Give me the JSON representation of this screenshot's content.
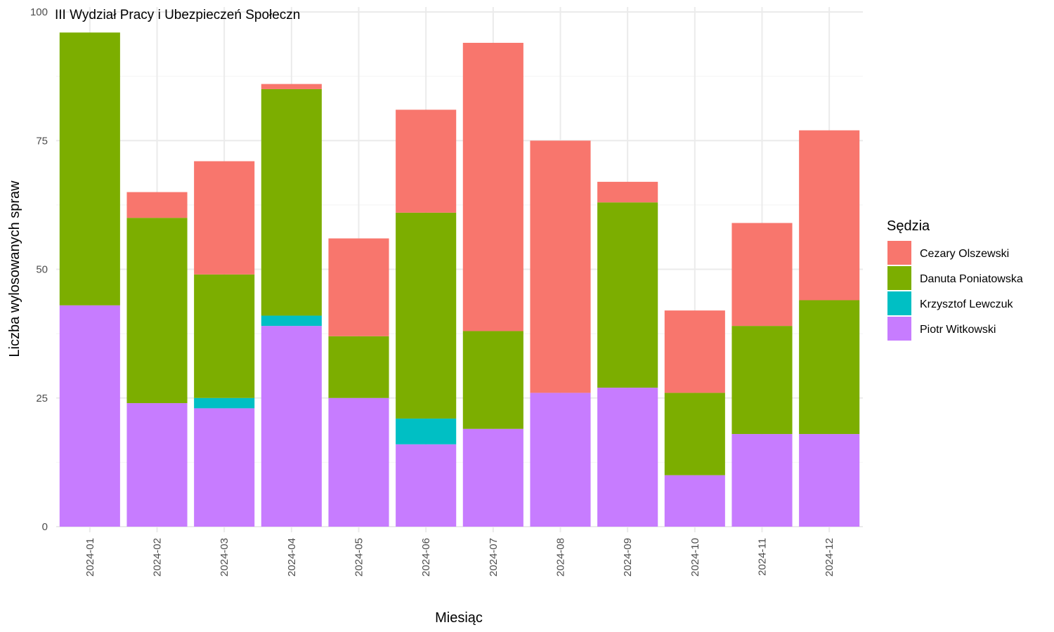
{
  "chart_data": {
    "type": "bar",
    "stacked": true,
    "title": "III Wydział Pracy i Ubezpieczeń Społeczn",
    "xlabel": "Miesiąc",
    "ylabel": "Liczba wylosowanych spraw",
    "ylim": [
      0,
      100
    ],
    "yticks": [
      "0",
      "25",
      "50",
      "75",
      "100"
    ],
    "ytick_values": [
      0,
      25,
      50,
      75,
      100
    ],
    "grid": true,
    "legend_title": "Sędzia",
    "legend_position": "right",
    "categories": [
      "2024-01",
      "2024-02",
      "2024-03",
      "2024-04",
      "2024-05",
      "2024-06",
      "2024-07",
      "2024-08",
      "2024-09",
      "2024-10",
      "2024-11",
      "2024-12"
    ],
    "series": [
      {
        "name": "Cezary Olszewski",
        "color": "#F8766D",
        "values": [
          0,
          5,
          22,
          1,
          19,
          20,
          56,
          49,
          4,
          16,
          20,
          33
        ]
      },
      {
        "name": "Danuta Poniatowska",
        "color": "#7CAE00",
        "values": [
          53,
          36,
          24,
          44,
          12,
          40,
          19,
          0,
          36,
          16,
          21,
          26
        ]
      },
      {
        "name": "Krzysztof Lewczuk",
        "color": "#00BFC4",
        "values": [
          0,
          0,
          2,
          2,
          0,
          5,
          0,
          0,
          0,
          0,
          0,
          0
        ]
      },
      {
        "name": "Piotr Witkowski",
        "color": "#C77CFF",
        "values": [
          43,
          24,
          23,
          39,
          25,
          16,
          19,
          26,
          27,
          10,
          18,
          18
        ]
      }
    ]
  }
}
